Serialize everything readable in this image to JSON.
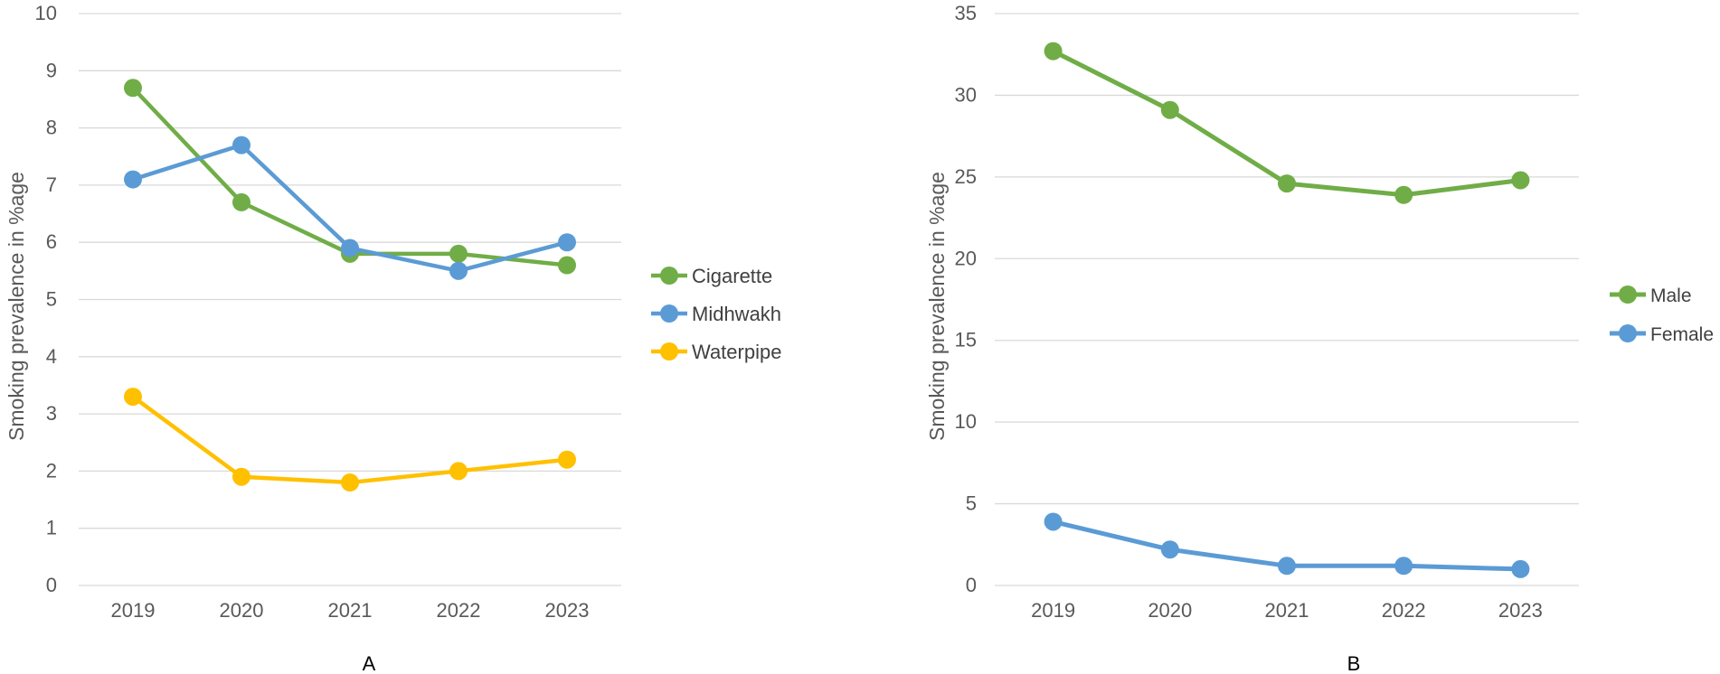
{
  "chart_data": [
    {
      "type": "line",
      "panel_label": "A",
      "title": "",
      "xlabel": "",
      "ylabel": "Smoking prevalence in %age",
      "categories": [
        "2019",
        "2020",
        "2021",
        "2022",
        "2023"
      ],
      "ylim": [
        0,
        10
      ],
      "yticks": [
        "0",
        "1",
        "2",
        "3",
        "4",
        "5",
        "6",
        "7",
        "8",
        "9",
        "10"
      ],
      "grid": true,
      "legend_position": "right",
      "series": [
        {
          "name": "Cigarette",
          "color": "#70ad47",
          "values": [
            8.7,
            6.7,
            5.8,
            5.8,
            5.6
          ]
        },
        {
          "name": "Midhwakh",
          "color": "#5b9bd5",
          "values": [
            7.1,
            7.7,
            5.9,
            5.5,
            6.0
          ]
        },
        {
          "name": "Waterpipe",
          "color": "#ffc000",
          "values": [
            3.3,
            1.9,
            1.8,
            2.0,
            2.2
          ]
        }
      ]
    },
    {
      "type": "line",
      "panel_label": "B",
      "title": "",
      "xlabel": "",
      "ylabel": "Smoking prevalence in %age",
      "categories": [
        "2019",
        "2020",
        "2021",
        "2022",
        "2023"
      ],
      "ylim": [
        0,
        35
      ],
      "yticks": [
        "0",
        "5",
        "10",
        "15",
        "20",
        "25",
        "30",
        "35"
      ],
      "grid": true,
      "legend_position": "right",
      "series": [
        {
          "name": "Male",
          "color": "#70ad47",
          "values": [
            32.7,
            29.1,
            24.6,
            23.9,
            24.8
          ]
        },
        {
          "name": "Female",
          "color": "#5b9bd5",
          "values": [
            3.9,
            2.2,
            1.2,
            1.2,
            1.0
          ]
        }
      ]
    }
  ]
}
